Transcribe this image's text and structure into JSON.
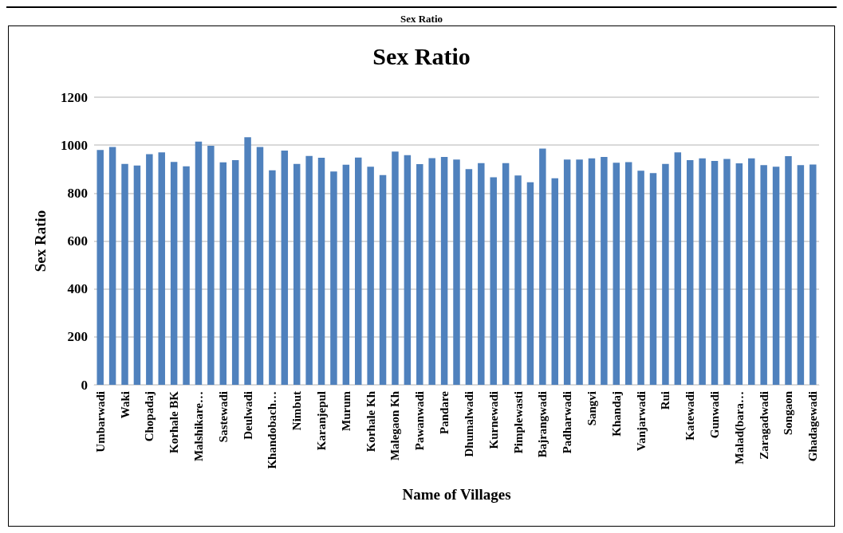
{
  "chart_data": {
    "type": "bar",
    "subtitle": "Sex Ratio",
    "title": "Sex Ratio",
    "xlabel": "Name of Villages",
    "ylabel": "Sex Ratio",
    "categories": [
      "Umbarwadi",
      null,
      "Waki",
      null,
      "Chopadaj",
      null,
      "Korhale BK",
      null,
      "Malshikare…",
      null,
      "Sastewadi",
      null,
      "Deulwadi",
      null,
      "Khandobach…",
      null,
      "Nimbut",
      null,
      "Karanjepul",
      null,
      "Murum",
      null,
      "Korhale Kh",
      null,
      "Malegaon Kh",
      null,
      "Pawanwadi",
      null,
      "Pandare",
      null,
      "Dhumalwadi",
      null,
      "Kurnewadi",
      null,
      "Pimplewasti",
      null,
      "Bajrangwadi",
      null,
      "Padharwadi",
      null,
      "Sangvi",
      null,
      "Khandaj",
      null,
      "Vanjarwadi",
      null,
      "Rui",
      null,
      "Katewadi",
      null,
      "Gunwadi",
      null,
      "Malad(bara…",
      null,
      "Zaragadwadi",
      null,
      "Songaon",
      null,
      "Ghadagewadi"
    ],
    "values": [
      980,
      992,
      922,
      915,
      962,
      970,
      930,
      912,
      1015,
      997,
      928,
      937,
      1033,
      992,
      895,
      977,
      922,
      955,
      947,
      890,
      918,
      948,
      910,
      875,
      973,
      958,
      921,
      946,
      951,
      940,
      900,
      925,
      866,
      925,
      873,
      845,
      986,
      862,
      940,
      940,
      945,
      951,
      927,
      929,
      893,
      883,
      922,
      970,
      937,
      945,
      934,
      942,
      924,
      945,
      917,
      910,
      954,
      917,
      919
    ],
    "color": "#4f81bd",
    "ylim": [
      0,
      1200
    ],
    "yticks": [
      0,
      200,
      400,
      600,
      800,
      1000,
      1200
    ],
    "grid": "y"
  }
}
